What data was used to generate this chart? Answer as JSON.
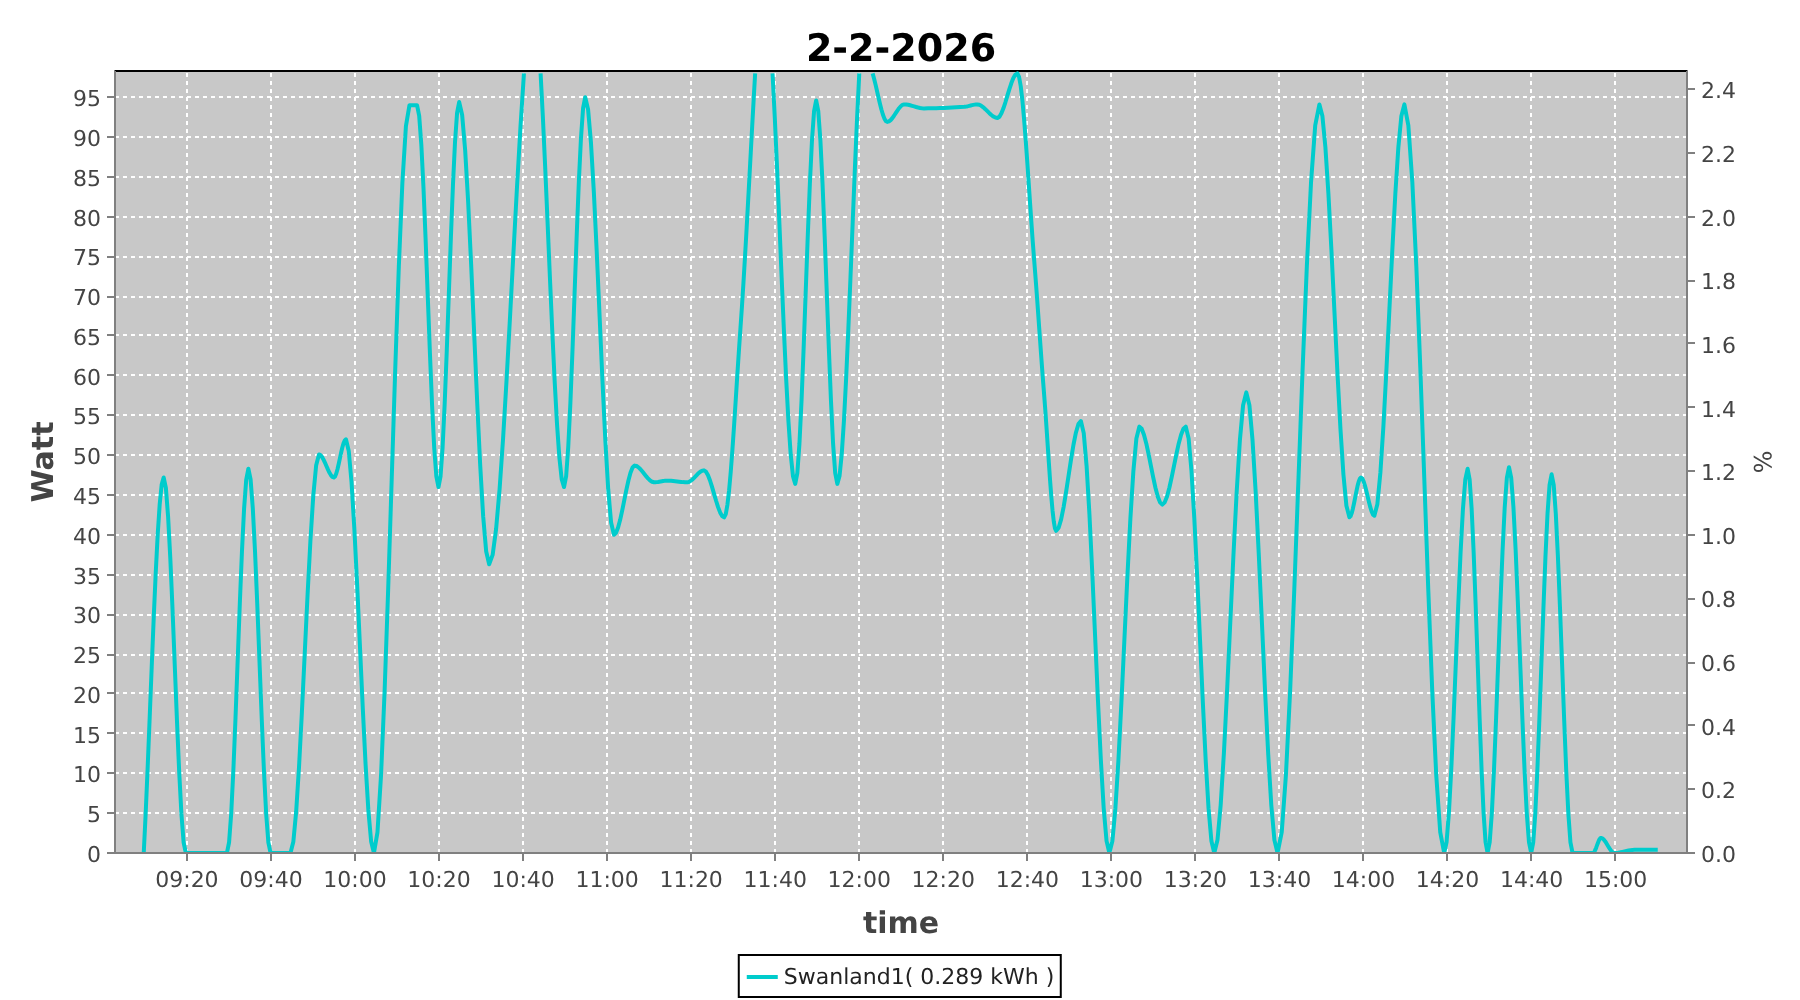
{
  "chart_data": {
    "type": "line",
    "title": "2-2-2026",
    "xlabel": "time",
    "ylabel": "Watt",
    "y2label": "%",
    "x": [
      9.162,
      9.241,
      9.329,
      9.492,
      9.577,
      9.665,
      9.744,
      9.857,
      9.916,
      9.964,
      10.075,
      10.216,
      10.246,
      10.331,
      10.413,
      10.532,
      10.67,
      10.703,
      10.736,
      10.829,
      10.913,
      11.027,
      11.109,
      11.186,
      11.238,
      11.317,
      11.384,
      11.464,
      11.529,
      11.587,
      11.621,
      11.656,
      11.746,
      11.829,
      11.913,
      12.0,
      12.027,
      12.053,
      12.111,
      12.178,
      12.257,
      12.416,
      12.468,
      12.548,
      12.627,
      12.694,
      12.733,
      12.781,
      12.879,
      12.992,
      13.111,
      13.202,
      13.295,
      13.408,
      13.535,
      13.659,
      13.825,
      13.944,
      13.99,
      14.043,
      14.162,
      14.32,
      14.413,
      14.492,
      14.577,
      14.665,
      14.746,
      14.829,
      14.91,
      14.942,
      14.995,
      15.075,
      15.167
    ],
    "series": [
      {
        "name": "Swanland1( 0.289 kWh )",
        "color": "#00cccc",
        "values": [
          0,
          47.2,
          0,
          0,
          48.3,
          0,
          0,
          50.1,
          47.2,
          52.0,
          0,
          94,
          94,
          46,
          94.4,
          36.3,
          98,
          null,
          98,
          46,
          95,
          40,
          48.7,
          46.6,
          46.8,
          46.6,
          48.1,
          42.2,
          66.1,
          98,
          null,
          98,
          46.4,
          94.6,
          46.4,
          98,
          null,
          98,
          91.9,
          94.1,
          93.6,
          93.8,
          94.1,
          92.4,
          98,
          74.4,
          57.7,
          40.5,
          54.3,
          0,
          53.6,
          43.8,
          53.6,
          0,
          57.9,
          0,
          94.1,
          42.2,
          47.2,
          42.4,
          94.1,
          0,
          48.3,
          0,
          48.5,
          0,
          47.6,
          0,
          0,
          1.9,
          0,
          0.4,
          0.4
        ]
      }
    ],
    "xlim": [
      9.048,
      15.283
    ],
    "xticks": [
      {
        "value": 9.3333,
        "label": "09:20"
      },
      {
        "value": 9.6667,
        "label": "09:40"
      },
      {
        "value": 10,
        "label": "10:00"
      },
      {
        "value": 10.3333,
        "label": "10:20"
      },
      {
        "value": 10.6667,
        "label": "10:40"
      },
      {
        "value": 11,
        "label": "11:00"
      },
      {
        "value": 11.3333,
        "label": "11:20"
      },
      {
        "value": 11.6667,
        "label": "11:40"
      },
      {
        "value": 12,
        "label": "12:00"
      },
      {
        "value": 12.3333,
        "label": "12:20"
      },
      {
        "value": 12.6667,
        "label": "12:40"
      },
      {
        "value": 13,
        "label": "13:00"
      },
      {
        "value": 13.3333,
        "label": "13:20"
      },
      {
        "value": 13.6667,
        "label": "13:40"
      },
      {
        "value": 14,
        "label": "14:00"
      },
      {
        "value": 14.3333,
        "label": "14:20"
      },
      {
        "value": 14.6667,
        "label": "14:40"
      },
      {
        "value": 15,
        "label": "15:00"
      }
    ],
    "ylim": [
      0,
      98.3
    ],
    "yticks": [
      0,
      5,
      10,
      15,
      20,
      25,
      30,
      35,
      40,
      45,
      50,
      55,
      60,
      65,
      70,
      75,
      80,
      85,
      90,
      95
    ],
    "y2lim": [
      0,
      2.4575
    ],
    "y2ticks": [
      {
        "value": 0,
        "label": "0.0"
      },
      0.2,
      0.4,
      0.6,
      0.8,
      {
        "value": 1,
        "label": "1.0"
      },
      1.2,
      1.4,
      1.6,
      1.8,
      {
        "value": 2,
        "label": "2.0"
      },
      2.2,
      2.4
    ],
    "grid": true,
    "legend": "bottom"
  }
}
